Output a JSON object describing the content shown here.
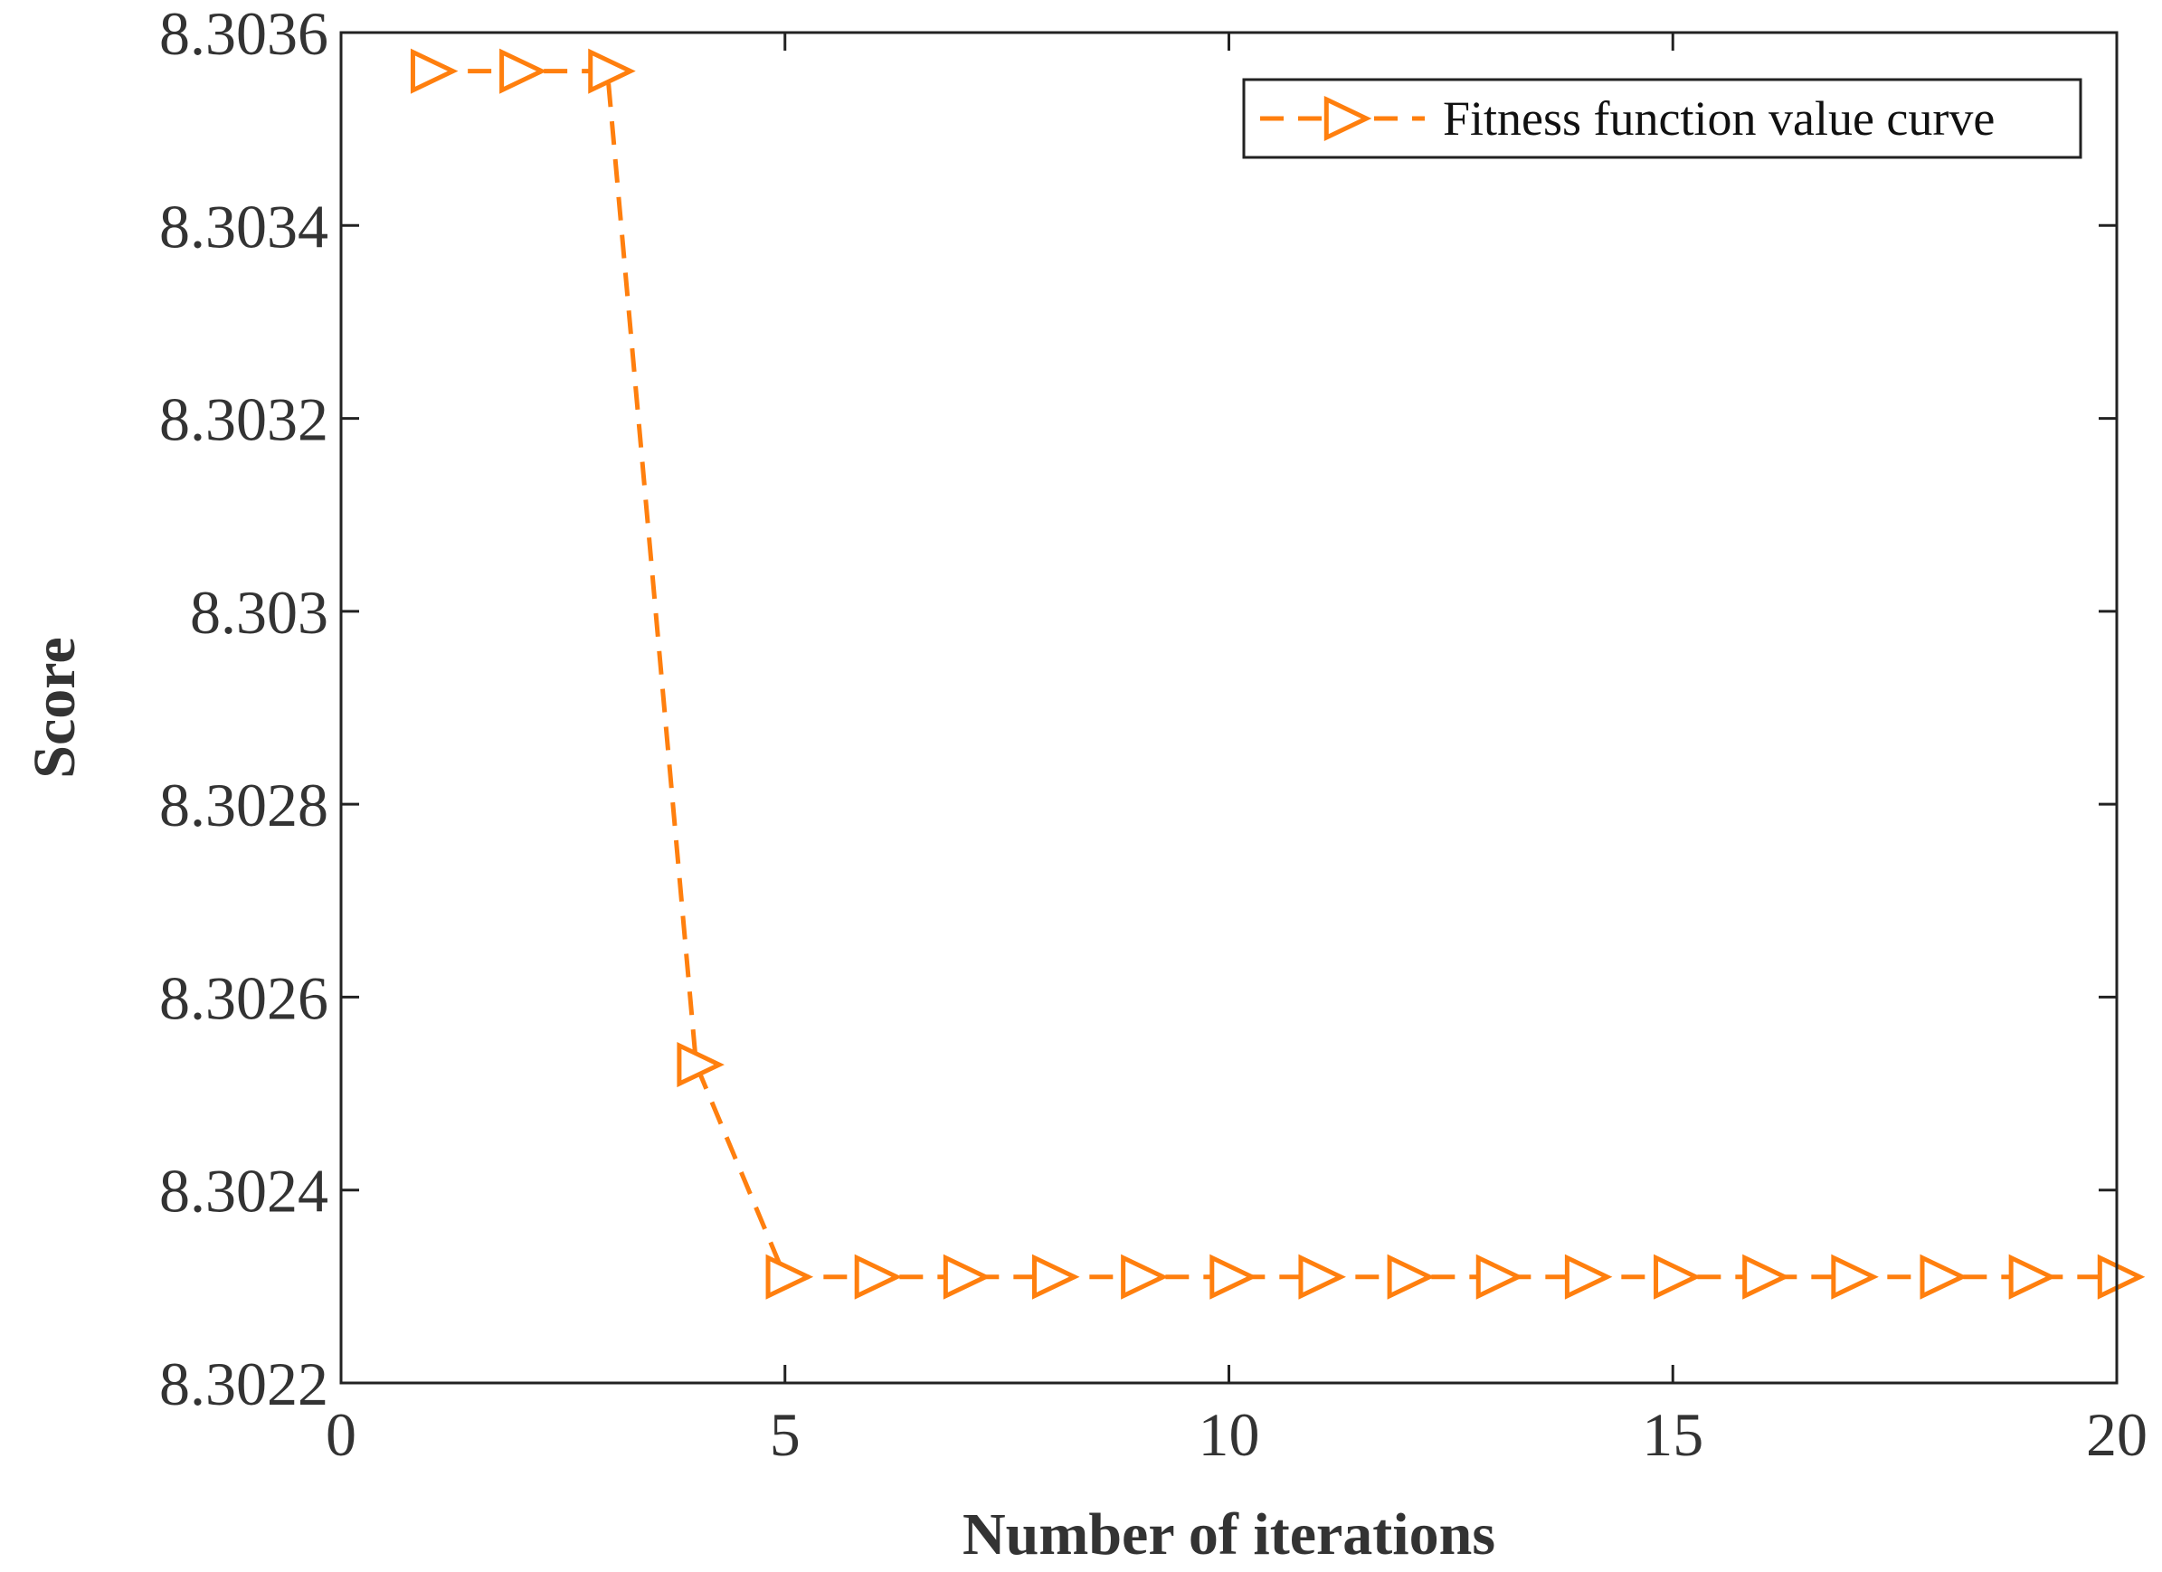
{
  "chart_data": {
    "type": "line",
    "title": "",
    "xlabel": "Number of iterations",
    "ylabel": "Score",
    "xlim": [
      0,
      20
    ],
    "ylim": [
      8.3022,
      8.3036
    ],
    "xticks": [
      0,
      5,
      10,
      15,
      20
    ],
    "xtick_labels": [
      "0",
      "5",
      "10",
      "15",
      "20"
    ],
    "yticks": [
      8.3022,
      8.3024,
      8.3026,
      8.3028,
      8.303,
      8.3032,
      8.3034,
      8.3036
    ],
    "ytick_labels": [
      "8.3022",
      "8.3024",
      "8.3026",
      "8.3028",
      "8.303",
      "8.3032",
      "8.3034",
      "8.3036"
    ],
    "grid": false,
    "legend_position": "top-right",
    "series": [
      {
        "name": "Fitness function value curve",
        "color": "#FF7F0E",
        "line_style": "dashed",
        "marker": "right-triangle",
        "x": [
          1,
          2,
          3,
          4,
          5,
          6,
          7,
          8,
          9,
          10,
          11,
          12,
          13,
          14,
          15,
          16,
          17,
          18,
          19,
          20
        ],
        "values": [
          8.30356,
          8.30356,
          8.30356,
          8.30253,
          8.30231,
          8.30231,
          8.30231,
          8.30231,
          8.30231,
          8.30231,
          8.30231,
          8.30231,
          8.30231,
          8.30231,
          8.30231,
          8.30231,
          8.30231,
          8.30231,
          8.30231,
          8.30231
        ]
      }
    ]
  }
}
